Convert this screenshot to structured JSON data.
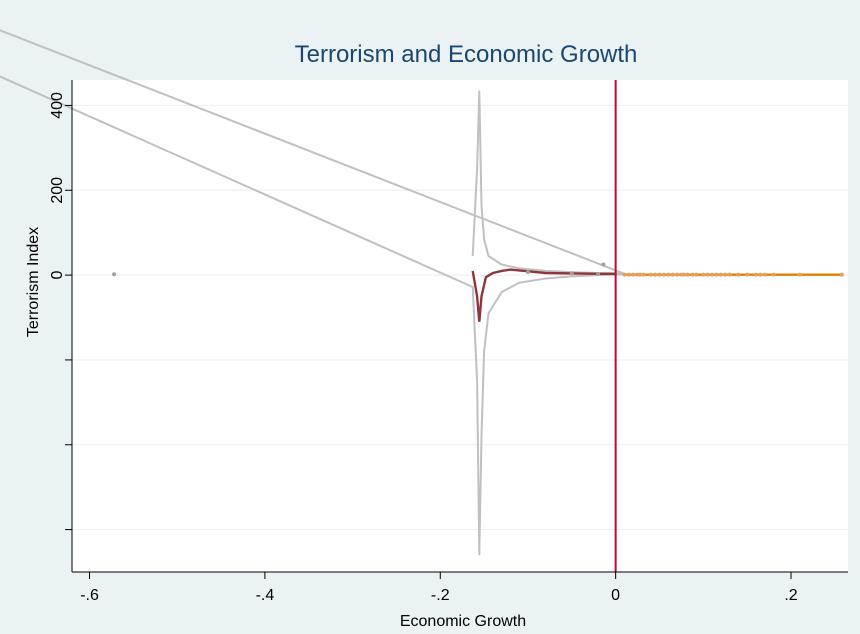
{
  "chart_data": {
    "type": "line",
    "title": "Terrorism and Economic Growth",
    "xlabel": "Economic Growth",
    "ylabel": "Terrorism Index",
    "xlim": [
      -0.62,
      0.265
    ],
    "ylim": [
      -700,
      460
    ],
    "x_ticks": [
      {
        "value": -0.6,
        "label": "-.6"
      },
      {
        "value": -0.4,
        "label": "-.4"
      },
      {
        "value": -0.2,
        "label": "-.2"
      },
      {
        "value": 0,
        "label": "0"
      },
      {
        "value": 0.2,
        "label": ".2"
      }
    ],
    "y_ticks": [
      {
        "value": 400,
        "label": "400"
      },
      {
        "value": 200,
        "label": "200"
      },
      {
        "value": 0,
        "label": "0"
      },
      {
        "value": -200,
        "label": ""
      },
      {
        "value": -400,
        "label": ""
      },
      {
        "value": -600,
        "label": ""
      }
    ],
    "grid": true,
    "vline": {
      "x": 0,
      "color": "#c10534"
    },
    "colors": {
      "plot_region": "#ffffff",
      "outer_region": "#eaf2f3",
      "grid": "#eaf2f3",
      "title": "#1a476f",
      "ci": "#c0c0c0",
      "fit_negative": "#90353b",
      "fit_positive": "#e37e00",
      "points": "#a0a0a0",
      "points_positive": "#e3a060"
    },
    "series": [
      {
        "role": "ci_lower",
        "x": [
          -0.78,
          -0.163,
          -0.158,
          -0.1555,
          -0.153,
          -0.15,
          -0.145,
          -0.13,
          -0.11,
          -0.08,
          -0.05,
          -0.02,
          0,
          0.01
        ],
        "y": [
          540,
          -28,
          -250,
          -660,
          -380,
          -180,
          -90,
          -40,
          -18,
          -8,
          -3,
          0,
          1,
          2
        ]
      },
      {
        "role": "ci_upper",
        "x": [
          -0.163,
          -0.158,
          -0.1555,
          -0.153,
          -0.15,
          -0.145,
          -0.13,
          -0.11,
          -0.08,
          -0.05,
          -0.02,
          0,
          0.01,
          -0.78
        ],
        "y": [
          45,
          250,
          435,
          165,
          85,
          45,
          25,
          16,
          10,
          7,
          5,
          4,
          3,
          640
        ]
      },
      {
        "role": "fit_negative",
        "x": [
          -0.163,
          -0.158,
          -0.1555,
          -0.153,
          -0.148,
          -0.14,
          -0.13,
          -0.12,
          -0.1,
          -0.08,
          -0.05,
          -0.02,
          0
        ],
        "y": [
          10,
          -50,
          -110,
          -50,
          -5,
          5,
          10,
          13,
          9,
          5,
          4,
          3,
          3
        ]
      },
      {
        "role": "fit_positive",
        "x": [
          0.01,
          0.258
        ],
        "y": [
          1,
          1
        ]
      }
    ],
    "points_negative": [
      {
        "x": -0.572,
        "y": 2
      },
      {
        "x": -0.014,
        "y": 25
      },
      {
        "x": -0.1,
        "y": 7
      },
      {
        "x": -0.05,
        "y": 4
      },
      {
        "x": -0.02,
        "y": 3
      }
    ],
    "points_positive_x": [
      0.01,
      0.015,
      0.02,
      0.025,
      0.028,
      0.032,
      0.04,
      0.045,
      0.05,
      0.055,
      0.06,
      0.065,
      0.07,
      0.075,
      0.078,
      0.082,
      0.088,
      0.092,
      0.1,
      0.105,
      0.11,
      0.115,
      0.12,
      0.125,
      0.13,
      0.14,
      0.15,
      0.16,
      0.165,
      0.17,
      0.18,
      0.21,
      0.258
    ]
  }
}
